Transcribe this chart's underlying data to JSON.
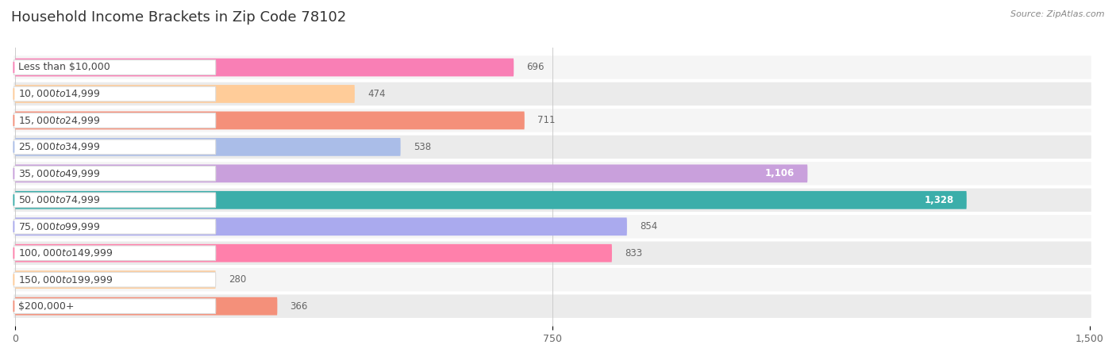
{
  "title": "Household Income Brackets in Zip Code 78102",
  "source": "Source: ZipAtlas.com",
  "categories": [
    "Less than $10,000",
    "$10,000 to $14,999",
    "$15,000 to $24,999",
    "$25,000 to $34,999",
    "$35,000 to $49,999",
    "$50,000 to $74,999",
    "$75,000 to $99,999",
    "$100,000 to $149,999",
    "$150,000 to $199,999",
    "$200,000+"
  ],
  "values": [
    696,
    474,
    711,
    538,
    1106,
    1328,
    854,
    833,
    280,
    366
  ],
  "bar_colors": [
    "#F97FB5",
    "#FFCC99",
    "#F4907A",
    "#AABDE8",
    "#C9A0DC",
    "#3BAEAA",
    "#AAAAEE",
    "#FF80AB",
    "#FFCC99",
    "#F4907A"
  ],
  "xlim": [
    0,
    1500
  ],
  "xticks": [
    0,
    750,
    1500
  ],
  "title_fontsize": 13,
  "label_fontsize": 9,
  "value_fontsize": 8.5,
  "source_fontsize": 8,
  "background_color": "#FFFFFF",
  "row_bg_even": "#F5F5F5",
  "row_bg_odd": "#EBEBEB",
  "label_bg_color": "#FFFFFF",
  "label_text_color": "#444444",
  "value_text_color_inside": "#FFFFFF",
  "value_text_color_outside": "#666666"
}
